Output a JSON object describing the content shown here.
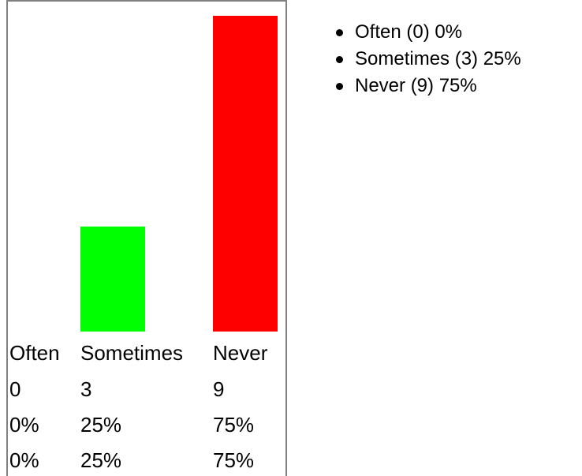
{
  "chart_data": {
    "type": "bar",
    "categories": [
      "Often",
      "Sometimes",
      "Never"
    ],
    "values": [
      0,
      3,
      9
    ],
    "percents": [
      "0%",
      "25%",
      "75%"
    ],
    "percents_repeat": [
      "0%",
      "25%",
      "75%"
    ],
    "counts_text": [
      "0",
      "3",
      "9"
    ],
    "colors": [
      "#0000ff",
      "#00ff00",
      "#ff0000"
    ],
    "ylim": [
      0,
      9
    ],
    "title": "",
    "xlabel": "",
    "ylabel": ""
  },
  "legend": {
    "items": [
      {
        "label": "Often (0) 0%"
      },
      {
        "label": "Sometimes (3) 25%"
      },
      {
        "label": "Never (9) 75%"
      }
    ]
  }
}
